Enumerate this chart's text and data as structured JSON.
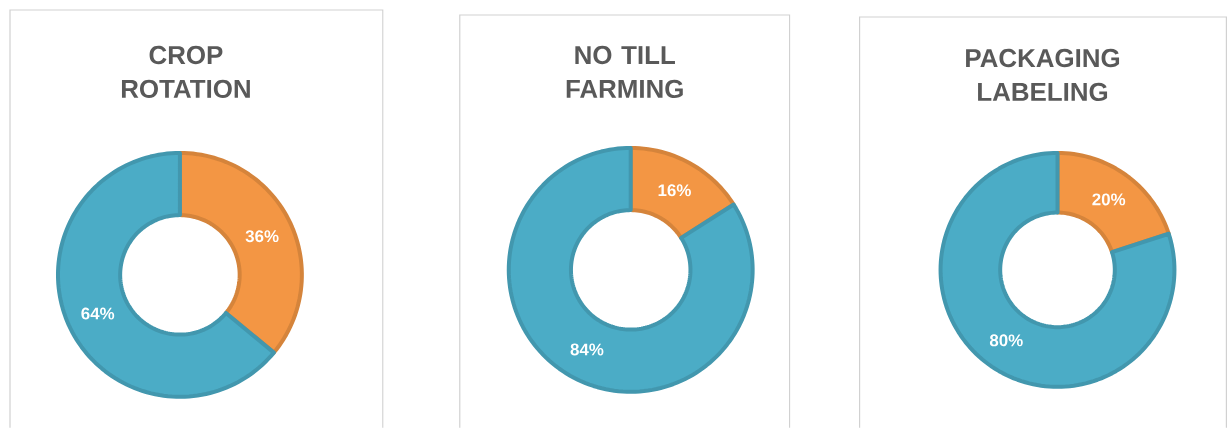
{
  "chart_data": [
    {
      "type": "donut",
      "title": "CROP ROTATION",
      "categories": [
        null,
        null
      ],
      "values": [
        36,
        64
      ],
      "colors": [
        "#f39644",
        "#4bacc6"
      ],
      "value_labels": [
        "36%",
        "64%"
      ]
    },
    {
      "type": "donut",
      "title": "NO TILL FARMING",
      "categories": [
        null,
        null
      ],
      "values": [
        16,
        84
      ],
      "colors": [
        "#f39644",
        "#4bacc6"
      ],
      "value_labels": [
        "16%",
        "84%"
      ]
    },
    {
      "type": "donut",
      "title": "PACKAGING LABELING",
      "categories": [
        null,
        null
      ],
      "values": [
        20,
        80
      ],
      "colors": [
        "#f39644",
        "#4bacc6"
      ],
      "value_labels": [
        "20%",
        "80%"
      ]
    }
  ]
}
